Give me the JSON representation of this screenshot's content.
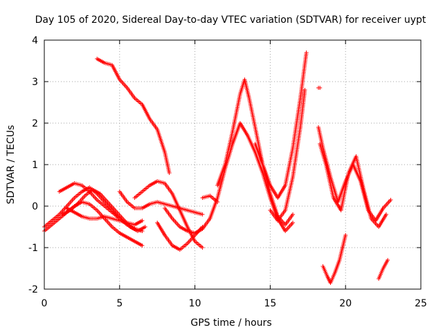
{
  "chart_data": {
    "type": "scatter",
    "title": "Day 105 of 2020, Sidereal Day-to-day VTEC variation (SDTVAR) for receiver uypt",
    "xlabel": "GPS time / hours",
    "ylabel": "SDTVAR / TECUs",
    "xlim": [
      0,
      25
    ],
    "ylim": [
      -2,
      4
    ],
    "xticks": [
      "0",
      "5",
      "10",
      "15",
      "20",
      "25"
    ],
    "yticks": [
      "-2",
      "-1",
      "0",
      "1",
      "2",
      "3",
      "4"
    ],
    "grid": true,
    "marker": "plus",
    "color": "#ff0000",
    "series": [
      {
        "name": "s1",
        "x": [
          0.0,
          0.5,
          1.0,
          1.5,
          2.0,
          2.5,
          3.0,
          3.5,
          4.0,
          4.5,
          5.0,
          5.5,
          6.0,
          6.5
        ],
        "y": [
          -0.6,
          -0.45,
          -0.3,
          -0.15,
          0.0,
          0.1,
          0.05,
          -0.1,
          -0.3,
          -0.5,
          -0.65,
          -0.75,
          -0.85,
          -0.95
        ]
      },
      {
        "name": "s2",
        "x": [
          0.0,
          0.5,
          1.0,
          1.5,
          2.0,
          2.5,
          3.0,
          3.5,
          4.0,
          4.5,
          5.0,
          5.5,
          6.0,
          6.5
        ],
        "y": [
          -0.5,
          -0.35,
          -0.2,
          0.0,
          0.2,
          0.35,
          0.45,
          0.3,
          0.1,
          -0.1,
          -0.3,
          -0.45,
          -0.55,
          -0.6
        ]
      },
      {
        "name": "s3",
        "x": [
          1.0,
          1.5,
          2.0,
          2.5,
          3.0,
          3.5,
          4.0,
          4.5,
          5.0,
          5.5,
          6.0,
          6.5
        ],
        "y": [
          0.35,
          0.45,
          0.55,
          0.5,
          0.35,
          0.15,
          0.0,
          -0.15,
          -0.3,
          -0.45,
          -0.55,
          -0.6
        ]
      },
      {
        "name": "s4",
        "x": [
          1.2,
          1.7,
          2.2,
          2.7,
          3.2,
          3.7,
          4.2,
          4.7,
          5.2,
          5.7,
          6.2,
          6.7
        ],
        "y": [
          -0.2,
          -0.1,
          0.05,
          0.25,
          0.4,
          0.3,
          0.1,
          -0.1,
          -0.3,
          -0.5,
          -0.6,
          -0.5
        ]
      },
      {
        "name": "s5",
        "x": [
          1.5,
          2.0,
          2.5,
          3.0,
          3.5,
          4.0,
          4.5,
          5.0,
          5.5,
          6.0,
          6.5
        ],
        "y": [
          -0.05,
          -0.15,
          -0.25,
          -0.3,
          -0.3,
          -0.25,
          -0.3,
          -0.35,
          -0.4,
          -0.45,
          -0.35
        ]
      },
      {
        "name": "s6",
        "x": [
          3.5,
          4.0,
          4.5,
          5.0,
          5.5,
          6.0,
          6.5,
          7.0,
          7.5,
          8.0,
          8.3
        ],
        "y": [
          3.55,
          3.45,
          3.4,
          3.05,
          2.85,
          2.6,
          2.45,
          2.1,
          1.85,
          1.3,
          0.8
        ]
      },
      {
        "name": "s7",
        "x": [
          5.0,
          5.5,
          6.0,
          6.5,
          7.0,
          7.5,
          8.0,
          8.5,
          9.0,
          9.5,
          10.0,
          10.5
        ],
        "y": [
          0.35,
          0.1,
          -0.05,
          -0.05,
          0.05,
          0.1,
          0.05,
          0.0,
          -0.05,
          -0.1,
          -0.15,
          -0.2
        ]
      },
      {
        "name": "s8",
        "x": [
          6.0,
          6.5,
          7.0,
          7.5,
          8.0,
          8.5,
          9.0,
          9.5,
          10.0,
          10.5
        ],
        "y": [
          0.2,
          0.35,
          0.5,
          0.6,
          0.55,
          0.3,
          -0.1,
          -0.5,
          -0.85,
          -1.0
        ]
      },
      {
        "name": "s9",
        "x": [
          7.5,
          8.0,
          8.5,
          9.0,
          9.5,
          10.0,
          10.5
        ],
        "y": [
          -0.4,
          -0.7,
          -0.95,
          -1.05,
          -0.9,
          -0.7,
          -0.5
        ]
      },
      {
        "name": "s10",
        "x": [
          8.0,
          8.5,
          9.0,
          9.5,
          10.0,
          10.5,
          11.0
        ],
        "y": [
          -0.05,
          -0.3,
          -0.5,
          -0.6,
          -0.65,
          -0.55,
          -0.3
        ]
      },
      {
        "name": "s11",
        "x": [
          10.5,
          11.0,
          11.5
        ],
        "y": [
          0.2,
          0.25,
          0.1
        ]
      },
      {
        "name": "s12",
        "x": [
          11.0,
          11.5,
          12.0,
          12.5,
          13.0,
          13.5,
          14.0,
          14.5,
          15.0,
          15.5,
          16.0,
          16.5
        ],
        "y": [
          -0.3,
          0.2,
          0.9,
          1.5,
          2.0,
          1.7,
          1.3,
          0.8,
          0.2,
          -0.3,
          -0.6,
          -0.4
        ]
      },
      {
        "name": "s13",
        "x": [
          11.5,
          12.0,
          12.5,
          13.0,
          13.3,
          13.6,
          14.0,
          14.5,
          15.0,
          15.5,
          16.0,
          16.5
        ],
        "y": [
          0.5,
          1.0,
          1.8,
          2.7,
          3.05,
          2.6,
          1.9,
          1.0,
          0.3,
          -0.25,
          -0.45,
          -0.2
        ]
      },
      {
        "name": "s14",
        "x": [
          14.0,
          14.5,
          15.0,
          15.5,
          16.0,
          16.5,
          17.0,
          17.4
        ],
        "y": [
          1.5,
          1.0,
          0.5,
          0.2,
          0.5,
          1.4,
          2.6,
          3.7
        ]
      },
      {
        "name": "s15",
        "x": [
          15.0,
          15.5,
          16.0,
          16.5,
          17.0,
          17.3
        ],
        "y": [
          -0.1,
          -0.35,
          -0.1,
          0.7,
          1.9,
          2.8
        ]
      },
      {
        "name": "s16",
        "x": [
          18.2,
          18.5,
          19.0,
          19.5,
          20.0,
          20.5,
          21.0,
          21.5,
          22.0,
          22.5,
          23.0
        ],
        "y": [
          1.9,
          1.4,
          0.7,
          0.1,
          0.6,
          1.0,
          0.6,
          -0.1,
          -0.35,
          -0.05,
          0.15
        ]
      },
      {
        "name": "s17",
        "x": [
          18.3,
          18.7,
          19.2,
          19.7,
          20.2,
          20.7,
          21.2,
          21.7,
          22.2,
          22.7
        ],
        "y": [
          1.5,
          1.0,
          0.2,
          -0.1,
          0.8,
          1.2,
          0.4,
          -0.3,
          -0.5,
          -0.2
        ]
      },
      {
        "name": "s18",
        "x": [
          18.5,
          18.8,
          19.0,
          19.3,
          19.6,
          20.0
        ],
        "y": [
          -1.45,
          -1.7,
          -1.85,
          -1.6,
          -1.3,
          -0.7
        ]
      },
      {
        "name": "s19",
        "x": [
          18.2,
          18.3
        ],
        "y": [
          2.85,
          2.85
        ]
      },
      {
        "name": "s20",
        "x": [
          22.2,
          22.5,
          22.8
        ],
        "y": [
          -1.75,
          -1.5,
          -1.3
        ]
      }
    ]
  }
}
